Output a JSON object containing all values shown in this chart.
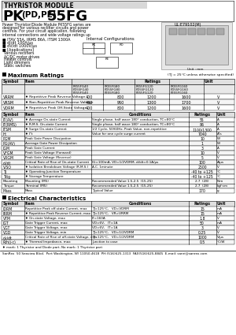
{
  "title_line1": "THYRISTOR MODULE",
  "title_line2_pk": "PK",
  "title_line2_sub": "(PD,PE)",
  "title_line2_rest": "55FG",
  "ul_text": "UL:E79102(M)",
  "description": "Power Thyristor/Diode Module PK55FG series are designed for various rectifier circuits and power controls. For your circuit application, following internal connections and wide voltage ratings up to 1600V are available, and electrically isolated mounting base make your mechanical design easy.",
  "bullet1": "■ ITAV 55A, IRMS 86A, ITSM 1300A",
  "bullet2": "■ dI/dt 100A/μs",
  "bullet3": "■ dV/dt 1000V/μs",
  "bullet4": "■ [Applications]",
  "apps": [
    "Various rectifiers",
    "AC/DC motor drives",
    "Heater controls",
    "Light dimmers",
    "Static switches"
  ],
  "internal_config_text": "Internal Configurations",
  "unit_mm": "Unit : mm",
  "max_ratings_title": "Maximum Ratings",
  "max_ratings_note": "(TJ = 25°C unless otherwise specified)",
  "ratings_col_labels": [
    "PK55FG40\nPD55FG40\nPE55FG40",
    "PK55FG80\nPD55FG80\nPE55FG80",
    "PK55FG120\nPD55FG120\nPE55FG120",
    "PK55FG160\nPD55FG160\nPE55FG160"
  ],
  "ratings_rows": [
    [
      "VRRM",
      "♦ Repetitive Peak Reverse Voltage",
      "400",
      "800",
      "1200",
      "1600",
      "V"
    ],
    [
      "VRSM",
      "♦ Non-Repetitive Peak Reverse Voltage",
      "480",
      "960",
      "1300",
      "1700",
      "V"
    ],
    [
      "VDRM",
      "♦ Repetitive Peak Off-State Voltage",
      "400",
      "800",
      "1200",
      "1600",
      "V"
    ]
  ],
  "second_table_rows": [
    [
      "IT(AV)",
      "♦ Average On-state Current",
      "Single phase, half wave 180° conduction, TC=80°C",
      "55",
      "A"
    ],
    [
      "IT(RMS)",
      "♦ R.M.S. On-state Current",
      "Single phase, half wave 180° conduction, TC=80°C",
      "86",
      "A"
    ],
    [
      "ITSM",
      "♦ Surge On-state Current",
      "1/2 Cycle, 50/60Hz, Peak Value, non-repetitive",
      "1100/1300",
      "A"
    ],
    [
      "I²t",
      "♦ I²t",
      "Value for one cycle surge current",
      "7040",
      "A²s"
    ],
    [
      "PGM",
      "Peak Gate Power Dissipation",
      "",
      "10",
      "W"
    ],
    [
      "PG(AV)",
      "Average Gate Power Dissipation",
      "",
      "1",
      "W"
    ],
    [
      "IGM",
      "Peak Gate Current",
      "",
      "3",
      "A"
    ],
    [
      "VFGM",
      "Peak Gate Voltage (Forward)",
      "",
      "10",
      "V"
    ],
    [
      "VRGM",
      "Peak Gate Voltage (Reverse)",
      "",
      "5",
      "V"
    ],
    [
      "di/dt",
      "Critical Rate of Rise of On-state Current",
      "IG=100mA, VD=1/2VDRM, di/dt=0.1A/μs",
      "100",
      "A/μs"
    ],
    [
      "VISO",
      "♦ Isolation Breakdown Voltage (R.M.S.)",
      "A.C. 1minute",
      "2500",
      "V"
    ],
    [
      "TJ",
      "♦ Operating Junction Temperature",
      "",
      "-40 to +125",
      "°C"
    ],
    [
      "Tstg",
      "♦ Storage Temperature",
      "",
      "-40 to +125",
      "°C"
    ],
    [
      "Torque_M",
      "Mounting\nTorque",
      "Mounting (M5)   Recommended Value 1.5-2.5  (15-25)",
      "2.7  (28)",
      "N·m\nkgf·cm"
    ],
    [
      "Mass",
      "Mass",
      "Typical Value",
      "170",
      "g"
    ]
  ],
  "elec_char_title": "Electrical Characteristics",
  "elec_rows": [
    [
      "IDRM",
      "Repetitive Peak off-state Current, max",
      "TJ=125°C,   VD=VDRM",
      "15",
      "mA"
    ],
    [
      "IRRM",
      "♦ Repetitive Peak Reverse Current, max",
      "TJ=125°C,   VR=VRRM",
      "15",
      "mA"
    ],
    [
      "VTM",
      "♦ On-state Voltage, max",
      "IT=160A",
      "1.8",
      "V"
    ],
    [
      "IGT",
      "Gate Trigger Current, max",
      "VD=6V,   IT=1A",
      "50",
      "mA"
    ],
    [
      "VGT",
      "Gate Trigger Voltage, max",
      "VD=6V,   IT=1A",
      "3",
      "V"
    ],
    [
      "VGD",
      "Gate Trigger Voltage, min",
      "TJ=125°C,   VD=1/2VDRM",
      "0.25",
      "V"
    ],
    [
      "dv/dt",
      "Critical Rate of Rise of off-state Voltage, min",
      "TJ=125°C,   VD=1/2VDRM",
      "1000",
      "V/μs"
    ],
    [
      "Rth(j-c)",
      "♦ Thermal Impedance, max",
      "Junction to case",
      "0.5",
      "°C/W"
    ]
  ],
  "footnote": "♦ mark: 1 Thyristor and Diode part, No mark: 1 Thyristor part",
  "footer": "SanRex  50 Seaview Blvd.  Port Washington, NY 11050-4618  PH:(516)625-1313  FAX(516)625-8845  E-mail: sanri@sanrex.com"
}
